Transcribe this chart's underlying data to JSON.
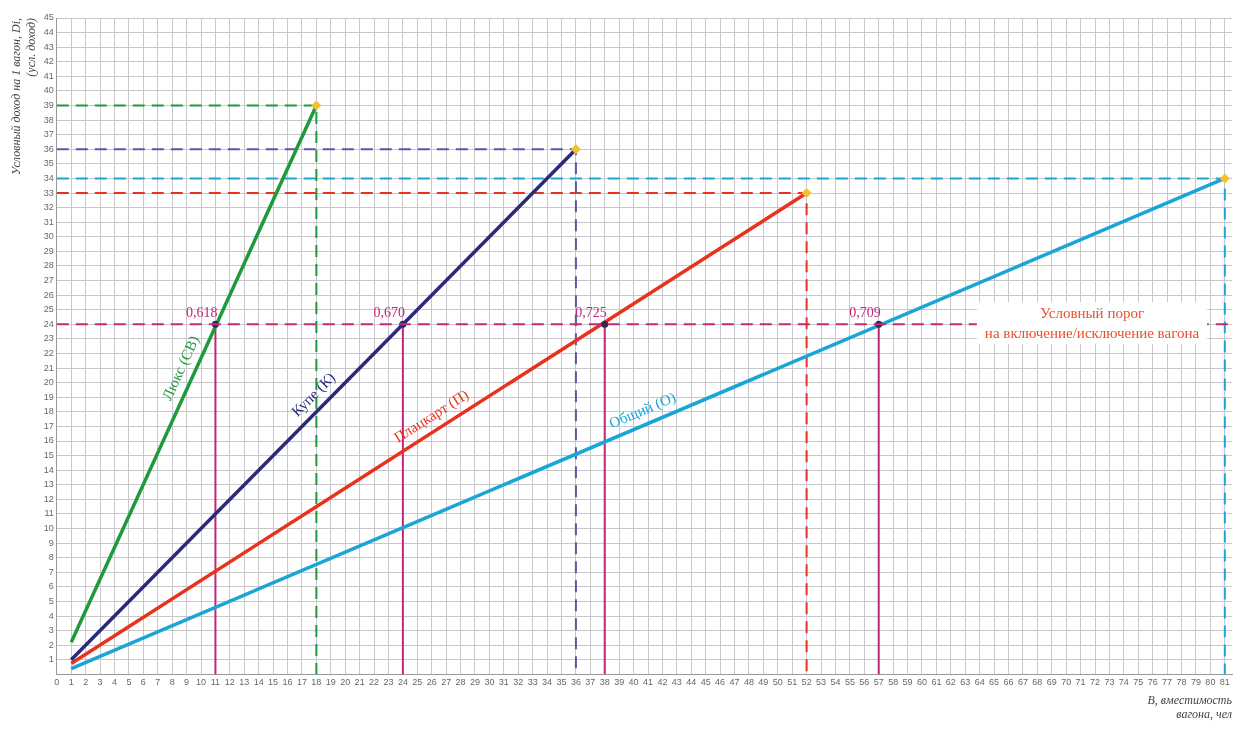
{
  "chart_data": {
    "type": "line",
    "xlabel": "B, вместимость\nвагона, чел",
    "ylabel": "Условный доход на 1 вагон, Di,\n(усл. доход)",
    "xlim": [
      0,
      81.5
    ],
    "ylim": [
      0,
      45
    ],
    "xticks": [
      0,
      1,
      2,
      3,
      4,
      5,
      6,
      7,
      8,
      9,
      10,
      11,
      12,
      13,
      14,
      15,
      16,
      17,
      18,
      19,
      20,
      21,
      22,
      23,
      24,
      25,
      26,
      27,
      28,
      29,
      30,
      31,
      32,
      33,
      34,
      35,
      36,
      37,
      38,
      39,
      40,
      41,
      42,
      43,
      44,
      45,
      46,
      47,
      48,
      49,
      50,
      51,
      52,
      53,
      54,
      55,
      56,
      57,
      58,
      59,
      60,
      61,
      62,
      63,
      64,
      65,
      66,
      67,
      68,
      69,
      70,
      71,
      72,
      73,
      74,
      75,
      76,
      77,
      78,
      79,
      80,
      81
    ],
    "yticks": [
      1,
      2,
      3,
      4,
      5,
      6,
      7,
      8,
      9,
      10,
      11,
      12,
      13,
      14,
      15,
      16,
      17,
      18,
      19,
      20,
      21,
      22,
      23,
      24,
      25,
      26,
      27,
      28,
      29,
      30,
      31,
      32,
      33,
      34,
      35,
      36,
      37,
      38,
      39,
      40,
      41,
      42,
      43,
      44,
      45
    ],
    "grid": true,
    "legend": false,
    "marker": "none",
    "line_style": "solid",
    "series": [
      {
        "name": "Люкс (СВ)",
        "color": "#1e9a3c",
        "x": [
          1,
          18
        ],
        "values": [
          2.2,
          39
        ]
      },
      {
        "name": "Купе (К)",
        "color": "#2b2a7a",
        "x": [
          1,
          36
        ],
        "values": [
          1,
          36
        ]
      },
      {
        "name": "Плацкарт (П)",
        "color": "#e8321e",
        "x": [
          1,
          52
        ],
        "values": [
          0.75,
          33
        ]
      },
      {
        "name": "Общий (О)",
        "color": "#19a6d6",
        "x": [
          1,
          81
        ],
        "values": [
          0.4,
          34
        ]
      },
      {
        "type": "line",
        "color": "#1e9a3c",
        "line_style": "dashed",
        "x": [
          0,
          18,
          18
        ],
        "values": [
          39,
          39,
          0
        ]
      },
      {
        "type": "line",
        "color": "#5a58a0",
        "line_style": "dashed",
        "x": [
          0,
          36,
          36
        ],
        "values": [
          36,
          36,
          0
        ]
      },
      {
        "type": "line",
        "color": "#e8321e",
        "line_style": "dashed",
        "x": [
          0,
          52,
          52
        ],
        "values": [
          33,
          33,
          0
        ]
      },
      {
        "type": "line",
        "color": "#19a6d6",
        "line_style": "dashed",
        "x": [
          0,
          81,
          81
        ],
        "values": [
          34,
          34,
          0
        ]
      },
      {
        "type": "line",
        "color": "#c2267a",
        "x": [
          11,
          11
        ],
        "values": [
          0,
          24
        ]
      },
      {
        "type": "line",
        "color": "#c2267a",
        "x": [
          24,
          24
        ],
        "values": [
          0,
          24
        ]
      },
      {
        "type": "line",
        "color": "#c2267a",
        "x": [
          38,
          38
        ],
        "values": [
          0,
          24
        ]
      },
      {
        "type": "line",
        "color": "#c2267a",
        "x": [
          57,
          57
        ],
        "values": [
          0,
          24
        ]
      },
      {
        "type": "scatter",
        "color": "#f5c030",
        "marker": "diamond",
        "x": [
          18,
          36,
          52,
          81
        ],
        "values": [
          39,
          36,
          33,
          34
        ]
      },
      {
        "type": "scatter",
        "color": "#2b2a5a",
        "marker": "circle",
        "x": [
          11,
          24,
          38,
          57
        ],
        "values": [
          24,
          24,
          24,
          24
        ]
      }
    ],
    "ref_lines": [
      {
        "axis": "y",
        "value": 24,
        "label": "Условный порог\nна включение/исключение вагона",
        "color": "#c8287a",
        "line_style": "dashed"
      }
    ],
    "annotations": [
      {
        "text": "0,618",
        "x": 11,
        "y": 24
      },
      {
        "text": "0,670",
        "x": 24,
        "y": 24
      },
      {
        "text": "0,725",
        "x": 38,
        "y": 24
      },
      {
        "text": "0,709",
        "x": 57,
        "y": 24
      }
    ]
  }
}
